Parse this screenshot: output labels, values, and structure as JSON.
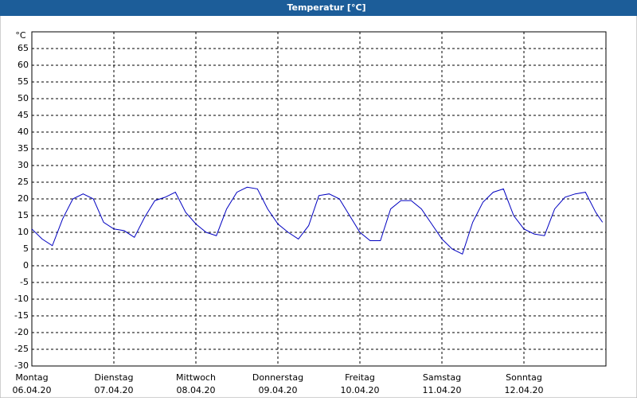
{
  "chart_data": {
    "type": "line",
    "title": "Temperatur [°C]",
    "y_unit": "°C",
    "x": [
      0,
      3,
      6,
      9,
      12,
      15,
      18,
      21,
      24,
      27,
      30,
      33,
      36,
      39,
      42,
      45,
      48,
      51,
      54,
      57,
      60,
      63,
      66,
      69,
      72,
      75,
      78,
      81,
      84,
      87,
      90,
      93,
      96,
      99,
      102,
      105,
      108,
      111,
      114,
      117,
      120,
      123,
      126,
      129,
      132,
      135,
      138,
      141,
      144,
      147,
      150,
      153,
      156,
      159,
      162,
      165,
      167
    ],
    "series": [
      {
        "name": "Temperatur",
        "color": "#0000c0",
        "values": [
          11,
          8,
          6,
          14,
          20,
          21.5,
          20,
          13,
          11,
          10.5,
          8.5,
          14.5,
          19.5,
          20.5,
          22,
          16,
          12.5,
          10,
          9,
          17,
          22,
          23.5,
          23,
          17,
          12.5,
          10,
          8,
          12,
          21,
          21.5,
          20,
          15,
          10,
          7.5,
          7.5,
          17,
          19.5,
          19.5,
          17,
          12.5,
          8,
          5,
          3.5,
          13,
          19,
          22,
          23,
          15,
          11,
          9.5,
          9,
          17,
          20.5,
          21.5,
          22,
          16,
          13
        ]
      }
    ],
    "xlim": [
      0,
      168
    ],
    "ylim": [
      -30,
      70
    ],
    "xticks": [
      {
        "value": 0,
        "label": "Montag",
        "date": "06.04.20"
      },
      {
        "value": 24,
        "label": "Dienstag",
        "date": "07.04.20"
      },
      {
        "value": 48,
        "label": "Mittwoch",
        "date": "08.04.20"
      },
      {
        "value": 72,
        "label": "Donnerstag",
        "date": "09.04.20"
      },
      {
        "value": 96,
        "label": "Freitag",
        "date": "10.04.20"
      },
      {
        "value": 120,
        "label": "Samstag",
        "date": "11.04.20"
      },
      {
        "value": 144,
        "label": "Sonntag",
        "date": "12.04.20"
      }
    ],
    "yticks": [
      -30,
      -25,
      -20,
      -15,
      -10,
      -5,
      0,
      5,
      10,
      15,
      20,
      25,
      30,
      35,
      40,
      45,
      50,
      55,
      60,
      65
    ],
    "grid": true
  }
}
